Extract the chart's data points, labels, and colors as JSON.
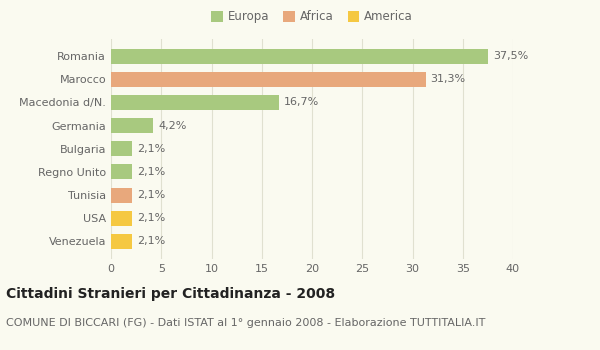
{
  "categories": [
    "Romania",
    "Marocco",
    "Macedonia d/N.",
    "Germania",
    "Bulgaria",
    "Regno Unito",
    "Tunisia",
    "USA",
    "Venezuela"
  ],
  "values": [
    37.5,
    31.3,
    16.7,
    4.2,
    2.1,
    2.1,
    2.1,
    2.1,
    2.1
  ],
  "labels": [
    "37,5%",
    "31,3%",
    "16,7%",
    "4,2%",
    "2,1%",
    "2,1%",
    "2,1%",
    "2,1%",
    "2,1%"
  ],
  "colors": [
    "#a8c97f",
    "#e8a87c",
    "#a8c97f",
    "#a8c97f",
    "#a8c97f",
    "#a8c97f",
    "#e8a87c",
    "#f5c842",
    "#f5c842"
  ],
  "legend": [
    {
      "label": "Europa",
      "color": "#a8c97f"
    },
    {
      "label": "Africa",
      "color": "#e8a87c"
    },
    {
      "label": "America",
      "color": "#f5c842"
    }
  ],
  "xlim": [
    0,
    40
  ],
  "xticks": [
    0,
    5,
    10,
    15,
    20,
    25,
    30,
    35,
    40
  ],
  "title": "Cittadini Stranieri per Cittadinanza - 2008",
  "subtitle": "COMUNE DI BICCARI (FG) - Dati ISTAT al 1° gennaio 2008 - Elaborazione TUTTITALIA.IT",
  "background_color": "#fafaf0",
  "grid_color": "#e0e0d0",
  "bar_height": 0.65,
  "title_fontsize": 10,
  "subtitle_fontsize": 8,
  "label_fontsize": 8,
  "tick_fontsize": 8,
  "legend_fontsize": 8.5
}
